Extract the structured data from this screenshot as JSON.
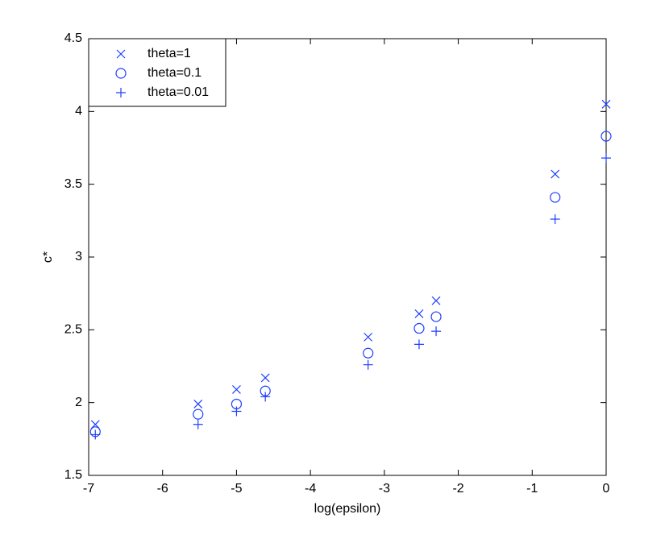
{
  "chart_data": {
    "type": "scatter",
    "xlabel": "log(epsilon)",
    "ylabel": "c*",
    "xlim": [
      -7,
      0
    ],
    "ylim": [
      1.5,
      4.5
    ],
    "xticks": [
      -7,
      -6,
      -5,
      -4,
      -3,
      -2,
      -1,
      0
    ],
    "yticks": [
      1.5,
      2,
      2.5,
      3,
      3.5,
      4,
      4.5
    ],
    "legend": "upper left",
    "x": [
      -6.91,
      -5.52,
      -5.0,
      -4.61,
      -3.22,
      -2.53,
      -2.3,
      -0.69,
      0
    ],
    "series": [
      {
        "name": "theta=1",
        "marker": "x",
        "color": "#1f3fff",
        "values": [
          1.85,
          1.99,
          2.09,
          2.17,
          2.45,
          2.61,
          2.7,
          3.57,
          4.05
        ]
      },
      {
        "name": "theta=0.1",
        "marker": "o",
        "color": "#1f3fff",
        "values": [
          1.8,
          1.92,
          1.99,
          2.08,
          2.34,
          2.51,
          2.59,
          3.41,
          3.83
        ]
      },
      {
        "name": "theta=0.01",
        "marker": "+",
        "color": "#1f3fff",
        "values": [
          1.78,
          1.85,
          1.94,
          2.04,
          2.26,
          2.4,
          2.49,
          3.26,
          3.68
        ]
      }
    ]
  }
}
